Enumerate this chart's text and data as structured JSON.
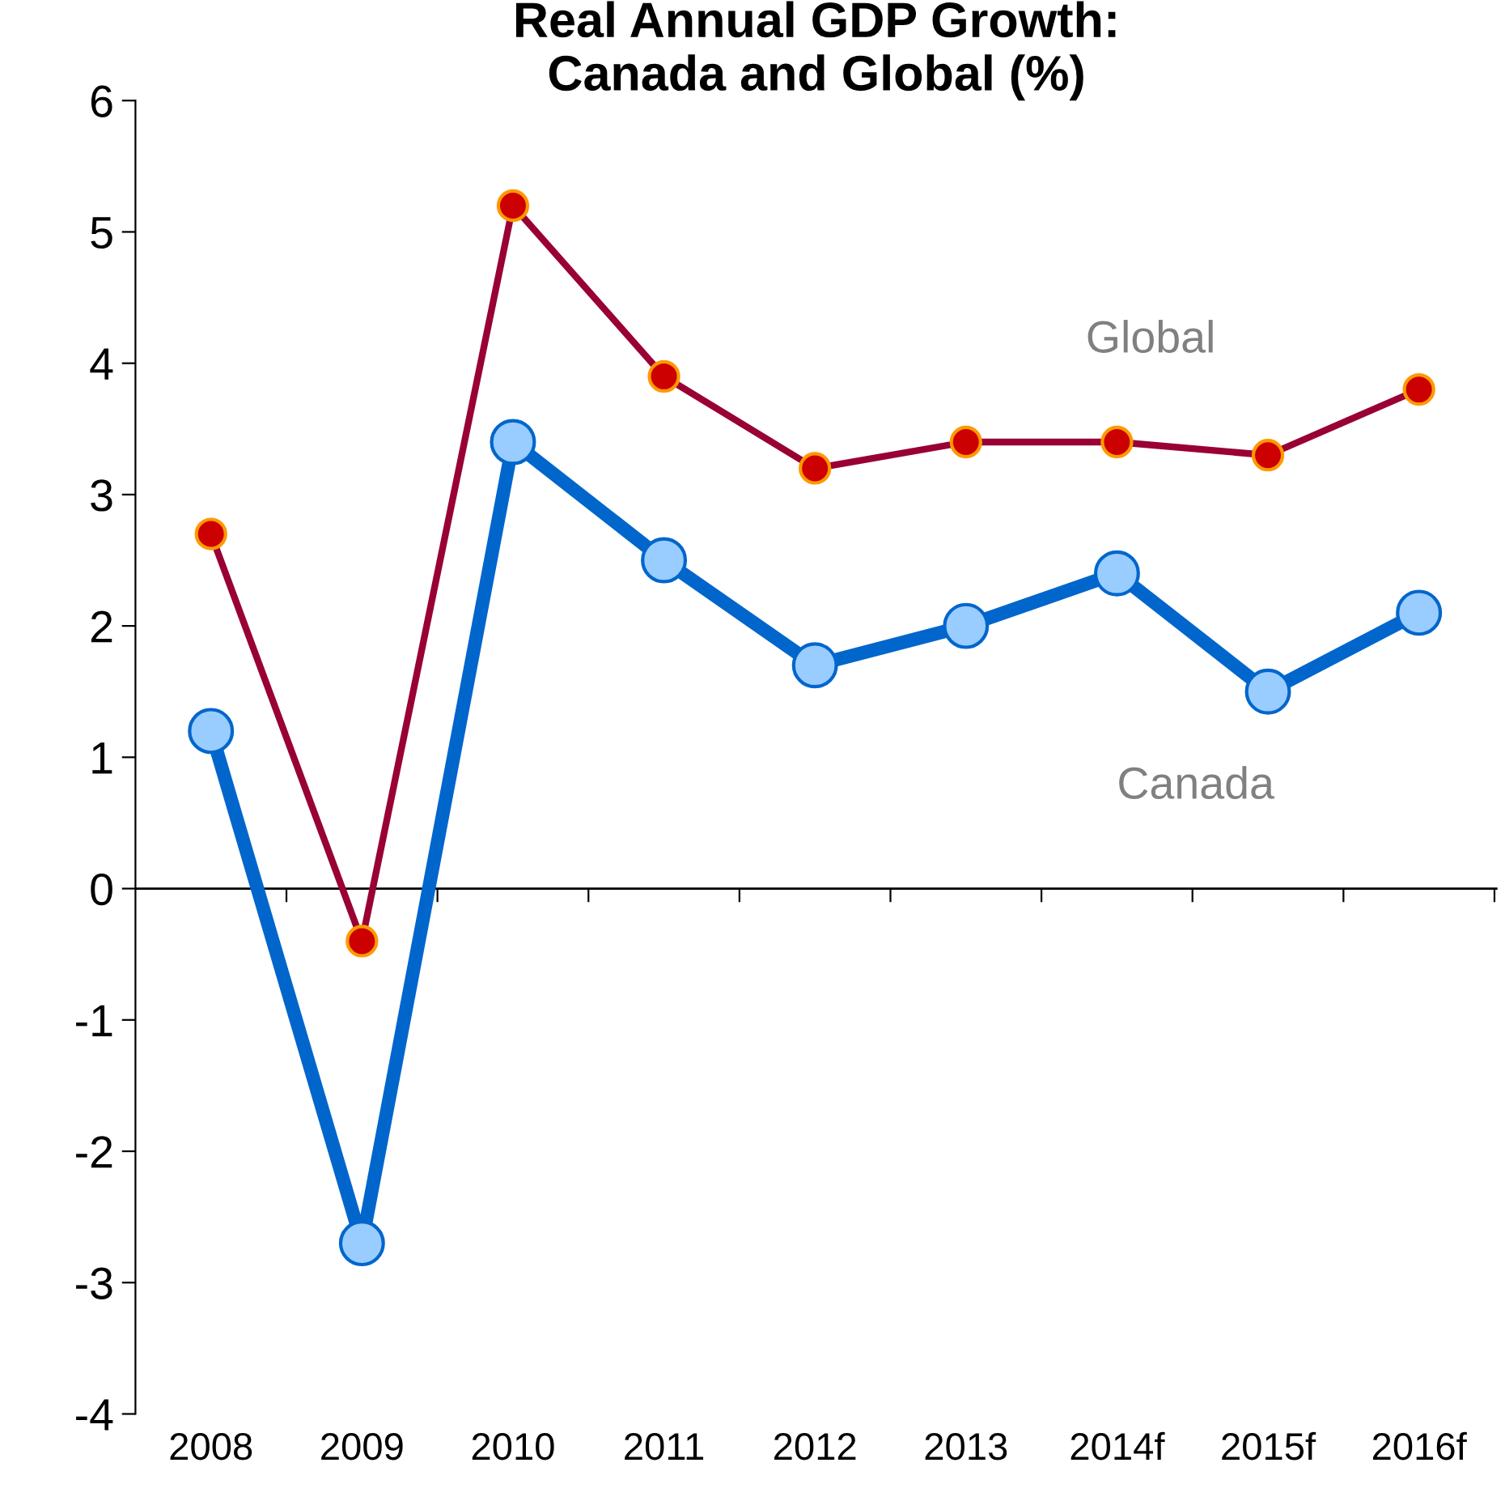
{
  "chart_data": {
    "type": "line",
    "title": "Real Annual GDP Growth:\nCanada and Global (%)",
    "categories": [
      "2008",
      "2009",
      "2010",
      "2011",
      "2012",
      "2013",
      "2014f",
      "2015f",
      "2016f"
    ],
    "series": [
      {
        "name": "Global",
        "color": "#990033",
        "values": [
          2.7,
          -0.4,
          5.2,
          3.9,
          3.2,
          3.4,
          3.4,
          3.3,
          3.8
        ]
      },
      {
        "name": "Canada",
        "color": "#0066cc",
        "values": [
          1.2,
          -2.7,
          3.4,
          2.5,
          1.7,
          2.0,
          2.4,
          1.5,
          2.1
        ]
      }
    ],
    "ylim": [
      -4,
      6
    ],
    "yticks": [
      -4,
      -3,
      -2,
      -1,
      0,
      1,
      2,
      3,
      4,
      5,
      6
    ],
    "ref_lines": [
      {
        "axis": "y",
        "value": 0,
        "color": "#000000"
      }
    ],
    "grid": false,
    "legend": false,
    "marker": "circle",
    "line_style": "solid"
  }
}
